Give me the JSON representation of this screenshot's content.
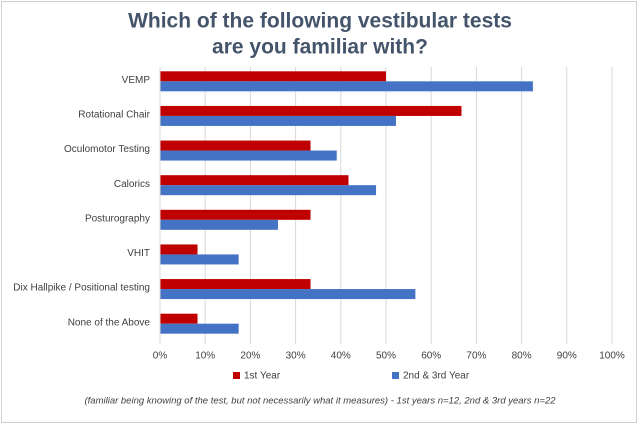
{
  "chart_data": {
    "type": "hbar",
    "title": [
      "Which of the following vestibular tests",
      "are you familiar with?"
    ],
    "categories": [
      "VEMP",
      "Rotational Chair",
      "Oculomotor Testing",
      "Calorics",
      "Posturography",
      "VHIT",
      "Dix Hallpike / Positional testing",
      "None of the Above"
    ],
    "series": [
      {
        "name": "1st Year",
        "color": "#c00000",
        "values": [
          50,
          66.7,
          33.3,
          41.7,
          33.3,
          8.3,
          33.3,
          8.3
        ]
      },
      {
        "name": "2nd & 3rd Year",
        "color": "#4472c4",
        "values": [
          82.5,
          52.2,
          39.1,
          47.8,
          26.1,
          17.4,
          56.5,
          17.4
        ]
      }
    ],
    "xlim": [
      0,
      100
    ],
    "xticks": [
      {
        "value": 0,
        "label": "0%"
      },
      {
        "value": 10,
        "label": "10%"
      },
      {
        "value": 20,
        "label": "20%"
      },
      {
        "value": 30,
        "label": "30%"
      },
      {
        "value": 40,
        "label": "40%"
      },
      {
        "value": 50,
        "label": "50%"
      },
      {
        "value": 60,
        "label": "60%"
      },
      {
        "value": 70,
        "label": "70%"
      },
      {
        "value": 80,
        "label": "80%"
      },
      {
        "value": 90,
        "label": "90%"
      },
      {
        "value": 100,
        "label": "100%"
      }
    ],
    "grid": true,
    "legend": "bottom",
    "note": "(familiar being knowing of the test, but not necessarily what it measures) - 1st years n=12, 2nd & 3rd years n=22"
  }
}
